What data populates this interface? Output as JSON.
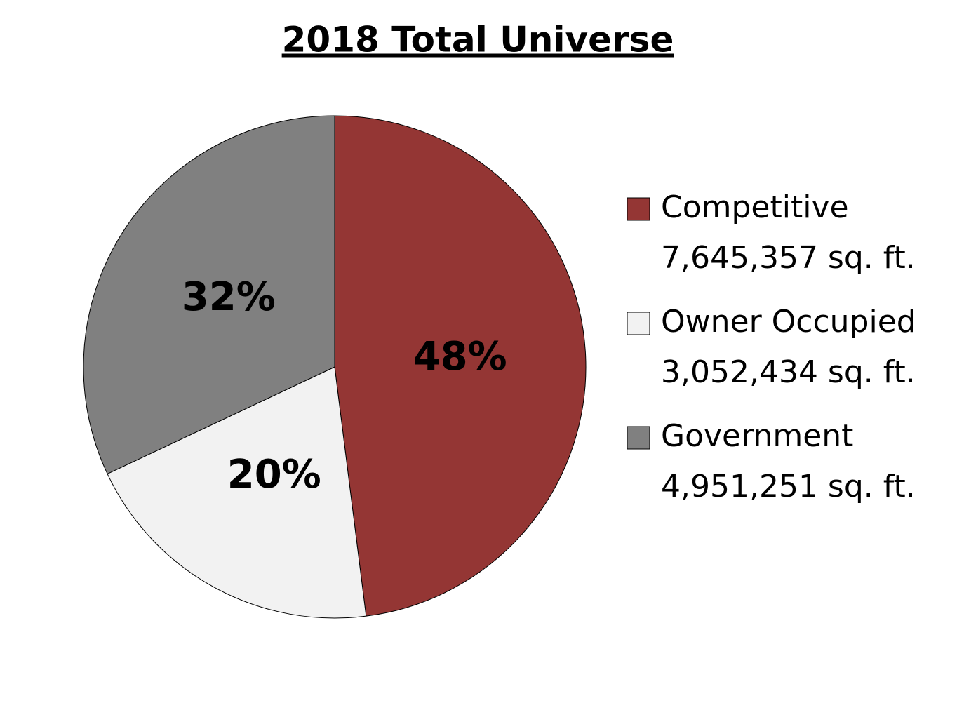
{
  "chart_data": {
    "type": "pie",
    "title": "2018 Total Universe",
    "categories": [
      "Competitive",
      "Owner Occupied",
      "Government"
    ],
    "values": [
      48,
      20,
      32
    ],
    "value_labels": [
      "48%",
      "20%",
      "32%"
    ],
    "legend_details": [
      "7,645,357 sq. ft.",
      "3,052,434 sq. ft.",
      "4,951,251 sq. ft."
    ],
    "colors": [
      "#943634",
      "#f2f2f2",
      "#808080"
    ],
    "legend": "right"
  }
}
